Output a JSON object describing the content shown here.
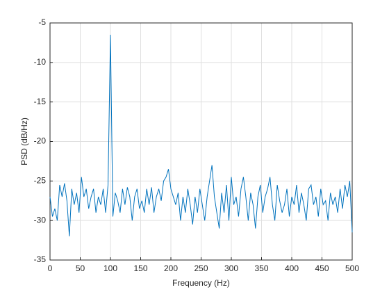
{
  "chart_data": {
    "type": "line",
    "xlabel": "Frequency (Hz)",
    "ylabel": "PSD (dB/Hz)",
    "color": "#0072bd",
    "grid": true,
    "xlim": [
      0,
      500
    ],
    "xticks": [
      0,
      50,
      100,
      150,
      200,
      250,
      300,
      350,
      400,
      450,
      500
    ],
    "ylim": [
      -35,
      -5
    ],
    "yticks": [
      -35,
      -30,
      -25,
      -20,
      -15,
      -10,
      -5
    ],
    "x": [
      0,
      4,
      8,
      12,
      16,
      20,
      24,
      28,
      32,
      36,
      40,
      44,
      48,
      52,
      56,
      60,
      64,
      68,
      72,
      76,
      80,
      84,
      88,
      92,
      96,
      100,
      104,
      108,
      112,
      116,
      120,
      124,
      128,
      132,
      136,
      140,
      144,
      148,
      152,
      156,
      160,
      164,
      168,
      172,
      176,
      180,
      184,
      188,
      192,
      196,
      200,
      204,
      208,
      212,
      216,
      220,
      224,
      228,
      232,
      236,
      240,
      244,
      248,
      252,
      256,
      260,
      264,
      268,
      272,
      276,
      280,
      284,
      288,
      292,
      296,
      300,
      304,
      308,
      312,
      316,
      320,
      324,
      328,
      332,
      336,
      340,
      344,
      348,
      352,
      356,
      360,
      364,
      368,
      372,
      376,
      380,
      384,
      388,
      392,
      396,
      400,
      404,
      408,
      412,
      416,
      420,
      424,
      428,
      432,
      436,
      440,
      444,
      448,
      452,
      456,
      460,
      464,
      468,
      472,
      476,
      480,
      484,
      488,
      492,
      496,
      500
    ],
    "values": [
      -27,
      -29.5,
      -28.5,
      -30,
      -25.5,
      -27,
      -25.3,
      -27.5,
      -32,
      -26,
      -28,
      -26.5,
      -29,
      -24.5,
      -27,
      -26,
      -28.5,
      -27,
      -26,
      -29,
      -27,
      -28,
      -26,
      -29,
      -25.5,
      -6.5,
      -29.5,
      -26.5,
      -27.5,
      -29,
      -26,
      -28,
      -25.8,
      -27,
      -30,
      -27,
      -26,
      -28.5,
      -27.5,
      -29,
      -26,
      -28,
      -25.8,
      -29,
      -27,
      -26,
      -27.5,
      -25,
      -24.5,
      -23.5,
      -26,
      -27,
      -28,
      -26.5,
      -30,
      -27,
      -29,
      -26,
      -28,
      -30.5,
      -27,
      -29,
      -26,
      -28,
      -30,
      -27,
      -25,
      -23,
      -27,
      -29,
      -31,
      -26.5,
      -29,
      -25.5,
      -30,
      -24.5,
      -28,
      -27,
      -29.5,
      -26,
      -24.5,
      -27,
      -30,
      -26.5,
      -28,
      -31,
      -27,
      -25.5,
      -29,
      -27,
      -26,
      -24.5,
      -28,
      -30,
      -25.5,
      -27.5,
      -29,
      -28,
      -26,
      -29.5,
      -27,
      -28,
      -25.5,
      -29,
      -26.5,
      -28,
      -30,
      -26,
      -25.5,
      -28,
      -27,
      -29.5,
      -26,
      -28,
      -27.5,
      -30,
      -26.5,
      -28,
      -27,
      -29,
      -26,
      -28.5,
      -25.5,
      -27,
      -25,
      -31.5
    ]
  }
}
